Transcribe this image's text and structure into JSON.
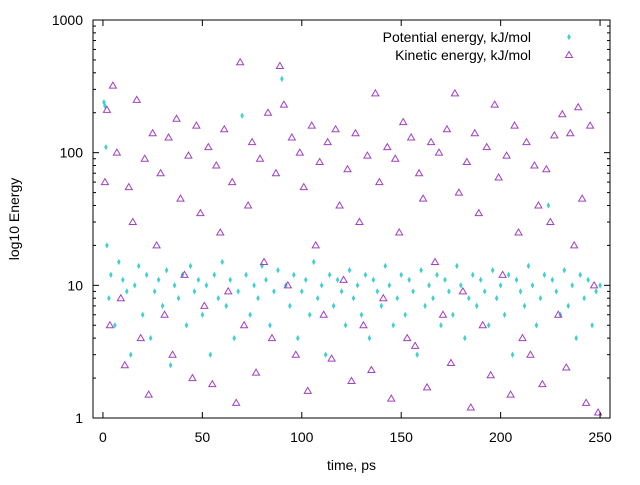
{
  "chart_data": {
    "type": "scatter",
    "title": "",
    "xlabel": "time, ps",
    "ylabel": "log10 Energy",
    "xlim": [
      -5,
      255
    ],
    "ylim": [
      1,
      1000
    ],
    "yscale": "log",
    "grid": false,
    "legend_position": "top-right",
    "x_ticks": [
      0,
      50,
      100,
      150,
      200,
      250
    ],
    "x_tick_labels": [
      "0",
      "50",
      "100",
      "150",
      "200",
      "250"
    ],
    "y_ticks": [
      1,
      10,
      100,
      1000
    ],
    "y_tick_labels": [
      "1",
      "10",
      "100",
      "1000"
    ],
    "series": [
      {
        "name": "Potential energy, kJ/mol",
        "marker": "diamond",
        "color": "#40d0d0",
        "x": [
          0.5,
          1,
          1.5,
          2,
          3,
          4,
          6,
          8,
          10,
          12,
          14,
          16,
          18,
          20,
          22,
          24,
          26,
          28,
          30,
          32,
          34,
          36,
          38,
          40,
          42,
          44,
          46,
          48,
          50,
          52,
          54,
          56,
          58,
          60,
          62,
          64,
          66,
          68,
          70,
          72,
          74,
          76,
          78,
          80,
          82,
          84,
          86,
          88,
          90,
          92,
          94,
          96,
          98,
          100,
          102,
          104,
          106,
          108,
          110,
          112,
          114,
          116,
          118,
          120,
          122,
          124,
          126,
          128,
          130,
          132,
          134,
          136,
          138,
          140,
          142,
          144,
          146,
          148,
          150,
          152,
          154,
          156,
          158,
          160,
          162,
          164,
          166,
          168,
          170,
          172,
          174,
          176,
          178,
          180,
          182,
          184,
          186,
          188,
          190,
          192,
          194,
          196,
          198,
          200,
          202,
          204,
          206,
          208,
          210,
          212,
          214,
          216,
          218,
          220,
          222,
          224,
          226,
          228,
          230,
          232,
          234,
          236,
          238,
          240,
          242,
          244,
          246,
          248,
          250
        ],
        "y": [
          240,
          225,
          110,
          20,
          8,
          12,
          5,
          15,
          11,
          9,
          3,
          10,
          14,
          6,
          12,
          4,
          9,
          11,
          7,
          13,
          2.5,
          10,
          8,
          12,
          5,
          14,
          9,
          11,
          6,
          10,
          3,
          12,
          8,
          15,
          7,
          11,
          4,
          9,
          190,
          12,
          6,
          10,
          8,
          14,
          11,
          5,
          9,
          13,
          360,
          10,
          7,
          12,
          4,
          9,
          11,
          6,
          15,
          8,
          10,
          3,
          12,
          7,
          11,
          9,
          5,
          13,
          8,
          10,
          6,
          12,
          4,
          11,
          9,
          7,
          14,
          10,
          5,
          8,
          12,
          6,
          11,
          9,
          3,
          13,
          7,
          10,
          8,
          12,
          5,
          11,
          9,
          6,
          14,
          10,
          4,
          8,
          12,
          7,
          11,
          9,
          5,
          13,
          8,
          10,
          6,
          12,
          3,
          11,
          9,
          7,
          14,
          10,
          5,
          8,
          12,
          40,
          11,
          9,
          6,
          13,
          7,
          10,
          4,
          12,
          8,
          11,
          5,
          9,
          10
        ]
      },
      {
        "name": "Kinetic energy, kJ/mol",
        "marker": "triangle",
        "color": "#a040c0",
        "x": [
          1,
          2,
          3.5,
          5,
          7,
          9,
          11,
          13,
          15,
          17,
          19,
          21,
          23,
          25,
          27,
          29,
          31,
          33,
          35,
          37,
          39,
          41,
          43,
          45,
          47,
          49,
          51,
          53,
          55,
          57,
          59,
          61,
          63,
          65,
          67,
          69,
          71,
          73,
          75,
          77,
          79,
          81,
          83,
          85,
          87,
          89,
          91,
          93,
          95,
          97,
          99,
          101,
          103,
          105,
          107,
          109,
          111,
          113,
          115,
          117,
          119,
          121,
          123,
          125,
          127,
          129,
          131,
          133,
          135,
          137,
          139,
          141,
          143,
          145,
          147,
          149,
          151,
          153,
          155,
          157,
          159,
          161,
          163,
          165,
          167,
          169,
          171,
          173,
          175,
          177,
          179,
          181,
          183,
          185,
          187,
          189,
          191,
          193,
          195,
          197,
          199,
          201,
          203,
          205,
          207,
          209,
          211,
          213,
          215,
          217,
          219,
          221,
          223,
          225,
          227,
          229,
          231,
          233,
          235,
          237,
          239,
          241,
          243,
          245,
          247,
          249
        ],
        "y": [
          60,
          210,
          5,
          320,
          100,
          8,
          2.5,
          55,
          30,
          250,
          4,
          90,
          1.5,
          140,
          20,
          70,
          6,
          130,
          3,
          180,
          45,
          12,
          95,
          2,
          160,
          35,
          7,
          110,
          1.8,
          80,
          25,
          150,
          9,
          60,
          1.3,
          480,
          5,
          40,
          120,
          2.2,
          90,
          15,
          200,
          4,
          70,
          450,
          230,
          10,
          130,
          3,
          100,
          55,
          1.6,
          160,
          20,
          85,
          6,
          120,
          2.8,
          150,
          40,
          11,
          75,
          1.9,
          140,
          30,
          5,
          95,
          2.3,
          280,
          60,
          8,
          110,
          1.4,
          90,
          25,
          170,
          4,
          130,
          3.5,
          70,
          45,
          1.7,
          120,
          15,
          100,
          6,
          150,
          2.6,
          280,
          50,
          9,
          85,
          1.2,
          140,
          35,
          5,
          110,
          2.1,
          230,
          65,
          12,
          95,
          1.5,
          160,
          25,
          4,
          120,
          3,
          80,
          40,
          1.8,
          75,
          30,
          135,
          6,
          195,
          2.4,
          140,
          20,
          220,
          45,
          1.3,
          160,
          10,
          1.1
        ]
      }
    ]
  }
}
